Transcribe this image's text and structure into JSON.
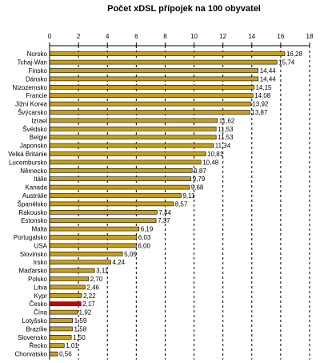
{
  "chart_data": {
    "type": "bar",
    "orientation": "horizontal",
    "title": "Počet xDSL přípojek na 100 obyvatel",
    "xlim": [
      0,
      18
    ],
    "xticks": [
      "0",
      "2",
      "4",
      "6",
      "8",
      "10",
      "12",
      "14",
      "16",
      "18"
    ],
    "grid": "vertical dashed",
    "colors": {
      "bar": "#c8a018",
      "highlight": "#c80000"
    },
    "highlight_category": "Česko",
    "categories": [
      "Norsko",
      "Tchaj-Wan",
      "Finsko",
      "Dánsko",
      "Nizozemsko",
      "Francie",
      "Jižní Korea",
      "Švýcarsko",
      "Izrael",
      "Švédsko",
      "Belgie",
      "Japonsko",
      "Velká Británie",
      "Lucembursko",
      "Německo",
      "Itálie",
      "Kanada",
      "Austrálie",
      "Španělsko",
      "Rakousko",
      "Estonsko",
      "Malta",
      "Portugalsko",
      "USA",
      "Slovinsko",
      "Irsko",
      "Maďarsko",
      "Polsko",
      "Litva",
      "Kypr",
      "Česko",
      "Čína",
      "Lotyšsko",
      "Brazílie",
      "Slovensko",
      "Řecko",
      "Chorvatsko"
    ],
    "values": [
      16.28,
      15.74,
      14.44,
      14.44,
      14.15,
      14.08,
      13.92,
      13.87,
      11.62,
      11.53,
      11.53,
      11.34,
      10.81,
      10.48,
      9.87,
      9.79,
      9.68,
      9.11,
      8.57,
      7.44,
      7.37,
      6.19,
      6.03,
      6.0,
      5.05,
      4.24,
      3.11,
      2.7,
      2.46,
      2.22,
      2.17,
      1.92,
      1.59,
      1.58,
      1.5,
      1.01,
      0.56
    ],
    "value_labels": [
      "16,28",
      "15,74",
      "14,44",
      "14,44",
      "14,15",
      "14,08",
      "13,92",
      "13,87",
      "11,62",
      "11,53",
      "11,53",
      "11,34",
      "10,81",
      "10,48",
      "9,87",
      "9,79",
      "9,68",
      "9,11",
      "8,57",
      "7,44",
      "7,37",
      "6,19",
      "6,03",
      "6,00",
      "5,05",
      "4,24",
      "3,11",
      "2,70",
      "2,46",
      "2,22",
      "2,17",
      "1,92",
      "1,59",
      "1,58",
      "1,50",
      "1,01",
      "0,56"
    ]
  }
}
